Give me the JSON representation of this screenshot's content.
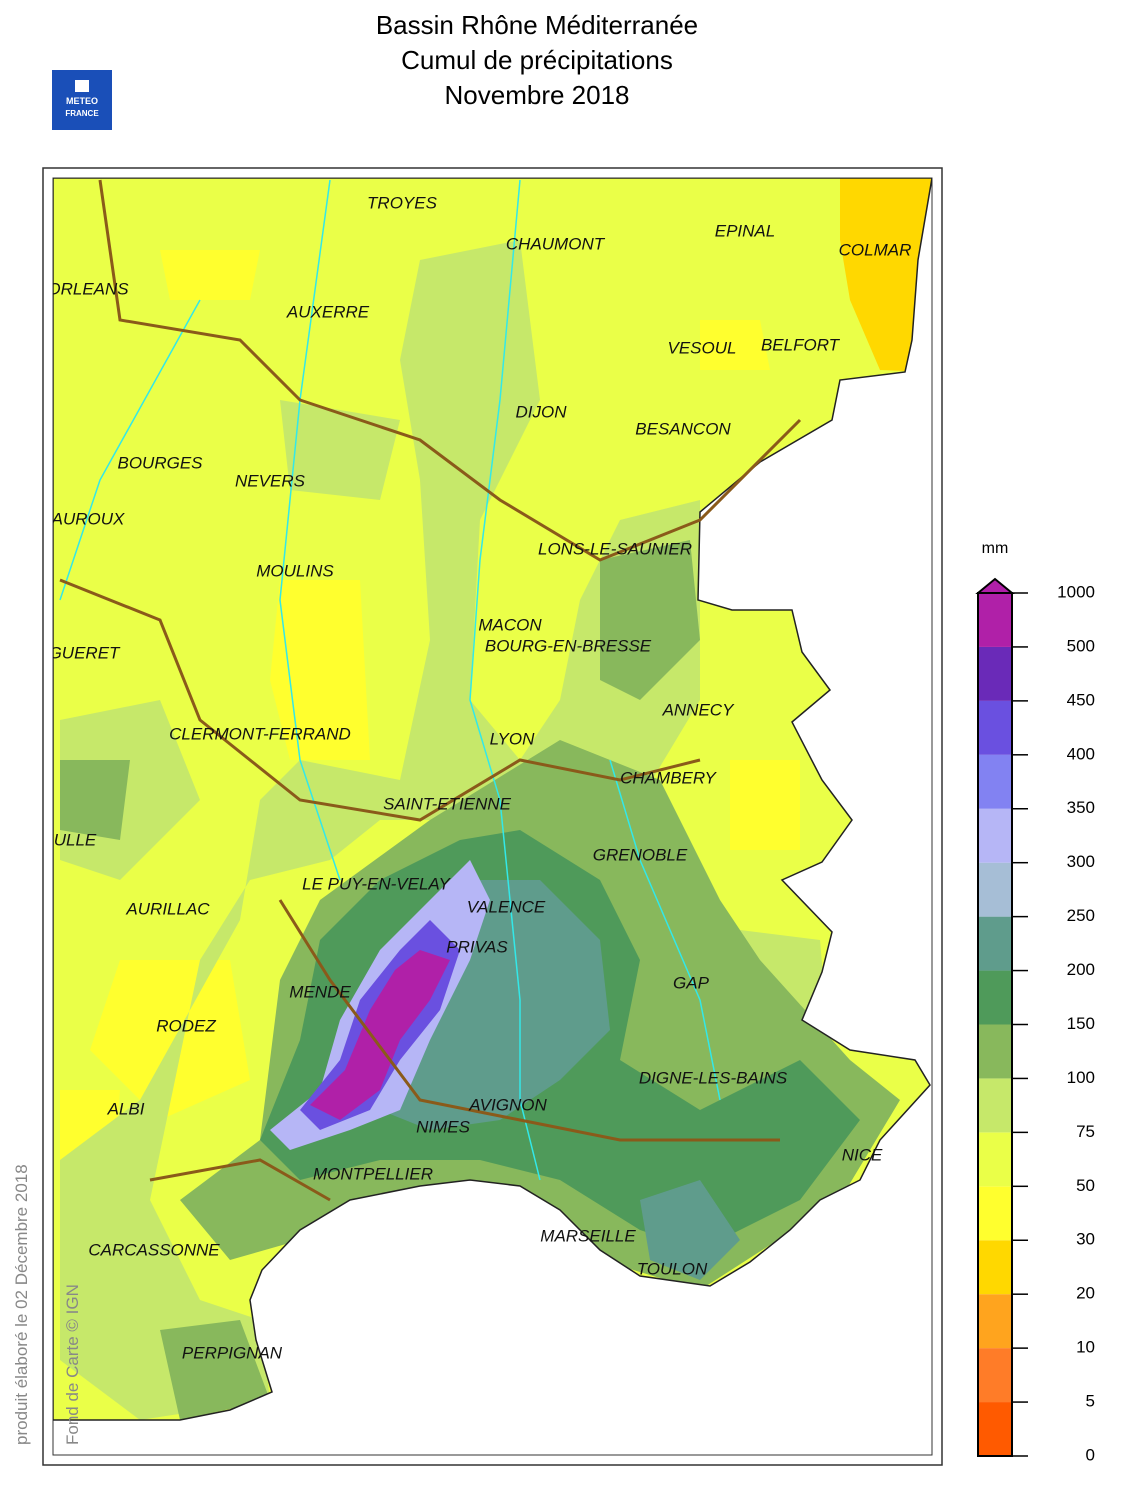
{
  "title": [
    "Bassin Rhône Méditerranée",
    "Cumul de précipitations",
    "Novembre 2018"
  ],
  "logo": [
    "METEO",
    "FRANCE"
  ],
  "cities": [
    "TROYES",
    "CHAUMONT",
    "EPINAL",
    "COLMAR",
    "ORLEANS",
    "AUXERRE",
    "VESOUL",
    "BELFORT",
    "DIJON",
    "BESANCON",
    "BOURGES",
    "NEVERS",
    "AUROUX",
    "LONS-LE-SAUNIER",
    "MOULINS",
    "MACON",
    "BOURG-EN-BRESSE",
    "GUERET",
    "ANNECY",
    "CLERMONT-FERRAND",
    "LYON",
    "CHAMBERY",
    "SAINT-ETIENNE",
    "ULLE",
    "GRENOBLE",
    "LE PUY-EN-VELAY",
    "VALENCE",
    "AURILLAC",
    "PRIVAS",
    "GAP",
    "MENDE",
    "RODEZ",
    "DIGNE-LES-BAINS",
    "ALBI",
    "AVIGNON",
    "NIMES",
    "NICE",
    "MONTPELLIER",
    "MARSEILLE",
    "CARCASSONNE",
    "TOULON",
    "PERPIGNAN"
  ],
  "legend": {
    "unit": "mm",
    "ticks": [
      0,
      5,
      10,
      20,
      30,
      50,
      75,
      100,
      150,
      200,
      250,
      300,
      350,
      400,
      450,
      500,
      1000
    ],
    "colors": [
      "#ff5a00",
      "#ff7c28",
      "#ffa41e",
      "#ffd800",
      "#ffff2e",
      "#eaff48",
      "#c6e86a",
      "#88b85c",
      "#4f9a5a",
      "#5f9c8c",
      "#a6bed6",
      "#b6b6f6",
      "#8282f2",
      "#6a50e0",
      "#6a2ab8",
      "#b020a8"
    ]
  },
  "footer": {
    "date": "produit élaboré le 02 Décembre 2018",
    "credit": "Fond de Carte © IGN"
  }
}
